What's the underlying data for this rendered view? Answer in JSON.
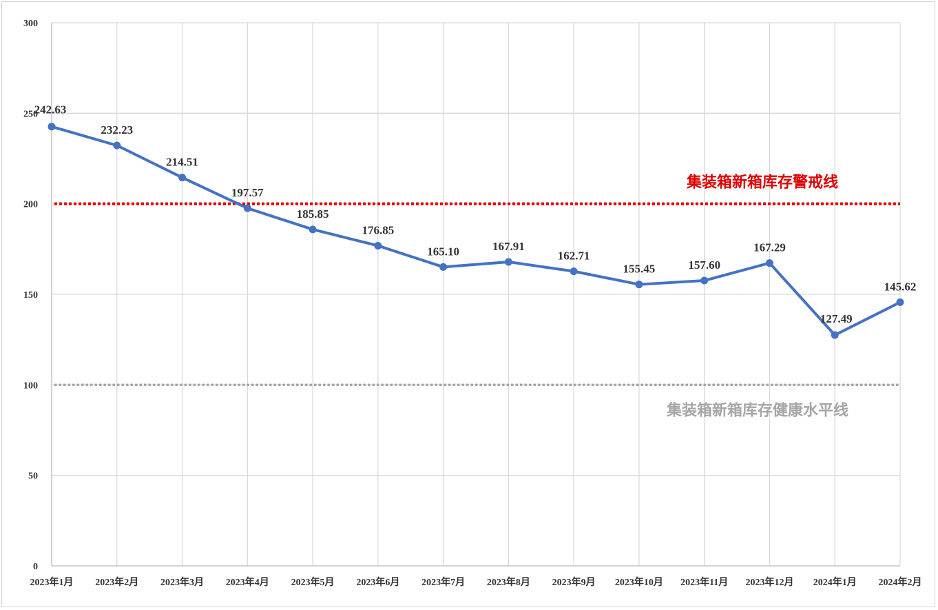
{
  "chart_data": {
    "type": "line",
    "title": "",
    "xlabel": "",
    "ylabel": "",
    "categories": [
      "2023年1月",
      "2023年2月",
      "2023年3月",
      "2023年4月",
      "2023年5月",
      "2023年6月",
      "2023年7月",
      "2023年8月",
      "2023年9月",
      "2023年10月",
      "2023年11月",
      "2023年12月",
      "2024年1月",
      "2024年2月"
    ],
    "series": [
      {
        "values": [
          242.63,
          232.23,
          214.51,
          197.57,
          185.85,
          176.85,
          165.1,
          167.91,
          162.71,
          155.45,
          157.6,
          167.29,
          127.49,
          145.62
        ],
        "color": "#4472C4"
      }
    ],
    "data_labels": [
      "242.63",
      "232.23",
      "214.51",
      "197.57",
      "185.85",
      "176.85",
      "165.10",
      "167.91",
      "162.71",
      "155.45",
      "157.60",
      "167.29",
      "127.49",
      "145.62"
    ],
    "ylim": [
      0,
      300
    ],
    "yticks": [
      0,
      50,
      100,
      150,
      200,
      250,
      300
    ],
    "grid": true,
    "reference_lines": [
      {
        "label": "集装箱新箱库存警戒线",
        "value": 200,
        "color": "#E00000",
        "style": "dotted"
      },
      {
        "label": "集装箱新箱库存健康水平线",
        "value": 100,
        "color": "#A6A6A6",
        "style": "dotted"
      }
    ]
  }
}
